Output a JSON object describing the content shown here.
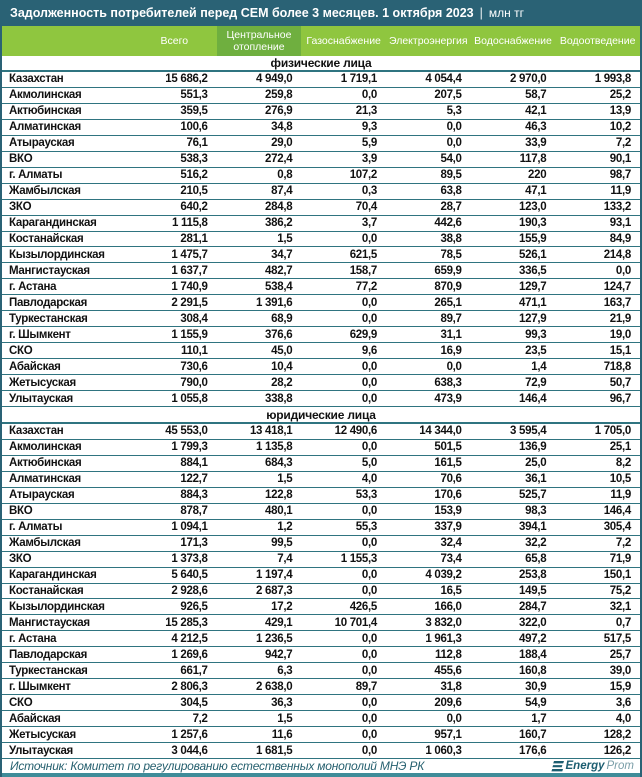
{
  "chart_data": {
    "type": "table",
    "title": "Задолженность потребителей перед СЕМ более 3 месяцев. 1 октября 2023",
    "unit": "млн тг",
    "columns": [
      "Всего",
      "Центральное отопление",
      "Газоснабжение",
      "Электроэнергия",
      "Водоснабжение",
      "Водоотведение"
    ],
    "highlighted_column": "Центральное отопление",
    "sections": [
      {
        "label": "физические лица",
        "rows": [
          {
            "name": "Казахстан",
            "bold": true,
            "values": [
              "15 686,2",
              "4 949,0",
              "1 719,1",
              "4 054,4",
              "2 970,0",
              "1 993,8"
            ]
          },
          {
            "name": "Акмолинская",
            "values": [
              "551,3",
              "259,8",
              "0,0",
              "207,5",
              "58,7",
              "25,2"
            ]
          },
          {
            "name": "Актюбинская",
            "values": [
              "359,5",
              "276,9",
              "21,3",
              "5,3",
              "42,1",
              "13,9"
            ]
          },
          {
            "name": "Алматинская",
            "values": [
              "100,6",
              "34,8",
              "9,3",
              "0,0",
              "46,3",
              "10,2"
            ]
          },
          {
            "name": "Атырауская",
            "values": [
              "76,1",
              "29,0",
              "5,9",
              "0,0",
              "33,9",
              "7,2"
            ]
          },
          {
            "name": "ВКО",
            "values": [
              "538,3",
              "272,4",
              "3,9",
              "54,0",
              "117,8",
              "90,1"
            ]
          },
          {
            "name": "г. Алматы",
            "values": [
              "516,2",
              "0,8",
              "107,2",
              "89,5",
              "220",
              "98,7"
            ]
          },
          {
            "name": "Жамбылская",
            "values": [
              "210,5",
              "87,4",
              "0,3",
              "63,8",
              "47,1",
              "11,9"
            ]
          },
          {
            "name": "ЗКО",
            "values": [
              "640,2",
              "284,8",
              "70,4",
              "28,7",
              "123,0",
              "133,2"
            ]
          },
          {
            "name": "Карагандинская",
            "values": [
              "1 115,8",
              "386,2",
              "3,7",
              "442,6",
              "190,3",
              "93,1"
            ]
          },
          {
            "name": "Костанайская",
            "values": [
              "281,1",
              "1,5",
              "0,0",
              "38,8",
              "155,9",
              "84,9"
            ]
          },
          {
            "name": "Кызылординская",
            "values": [
              "1 475,7",
              "34,7",
              "621,5",
              "78,5",
              "526,1",
              "214,8"
            ]
          },
          {
            "name": "Мангистауская",
            "values": [
              "1 637,7",
              "482,7",
              "158,7",
              "659,9",
              "336,5",
              "0,0"
            ]
          },
          {
            "name": "г. Астана",
            "values": [
              "1 740,9",
              "538,4",
              "77,2",
              "870,9",
              "129,7",
              "124,7"
            ]
          },
          {
            "name": "Павлодарская",
            "values": [
              "2 291,5",
              "1 391,6",
              "0,0",
              "265,1",
              "471,1",
              "163,7"
            ]
          },
          {
            "name": "Туркестанская",
            "values": [
              "308,4",
              "68,9",
              "0,0",
              "89,7",
              "127,9",
              "21,9"
            ]
          },
          {
            "name": "г. Шымкент",
            "values": [
              "1 155,9",
              "376,6",
              "629,9",
              "31,1",
              "99,3",
              "19,0"
            ]
          },
          {
            "name": "СКО",
            "values": [
              "110,1",
              "45,0",
              "9,6",
              "16,9",
              "23,5",
              "15,1"
            ]
          },
          {
            "name": "Абайская",
            "values": [
              "730,6",
              "10,4",
              "0,0",
              "0,0",
              "1,4",
              "718,8"
            ]
          },
          {
            "name": "Жетысуская",
            "values": [
              "790,0",
              "28,2",
              "0,0",
              "638,3",
              "72,9",
              "50,7"
            ]
          },
          {
            "name": "Улытауская",
            "values": [
              "1 055,8",
              "338,8",
              "0,0",
              "473,9",
              "146,4",
              "96,7"
            ]
          }
        ]
      },
      {
        "label": "юридические лица",
        "rows": [
          {
            "name": "Казахстан",
            "bold": true,
            "values": [
              "45 553,0",
              "13 418,1",
              "12 490,6",
              "14 344,0",
              "3 595,4",
              "1 705,0"
            ]
          },
          {
            "name": "Акмолинская",
            "values": [
              "1 799,3",
              "1 135,8",
              "0,0",
              "501,5",
              "136,9",
              "25,1"
            ]
          },
          {
            "name": "Актюбинская",
            "values": [
              "884,1",
              "684,3",
              "5,0",
              "161,5",
              "25,0",
              "8,2"
            ]
          },
          {
            "name": "Алматинская",
            "values": [
              "122,7",
              "1,5",
              "4,0",
              "70,6",
              "36,1",
              "10,5"
            ]
          },
          {
            "name": "Атырауская",
            "values": [
              "884,3",
              "122,8",
              "53,3",
              "170,6",
              "525,7",
              "11,9"
            ]
          },
          {
            "name": "ВКО",
            "values": [
              "878,7",
              "480,1",
              "0,0",
              "153,9",
              "98,3",
              "146,4"
            ]
          },
          {
            "name": "г. Алматы",
            "values": [
              "1 094,1",
              "1,2",
              "55,3",
              "337,9",
              "394,1",
              "305,4"
            ]
          },
          {
            "name": "Жамбылская",
            "values": [
              "171,3",
              "99,5",
              "0,0",
              "32,4",
              "32,2",
              "7,2"
            ]
          },
          {
            "name": "ЗКО",
            "values": [
              "1 373,8",
              "7,4",
              "1 155,3",
              "73,4",
              "65,8",
              "71,9"
            ]
          },
          {
            "name": "Карагандинская",
            "values": [
              "5 640,5",
              "1 197,4",
              "0,0",
              "4 039,2",
              "253,8",
              "150,1"
            ]
          },
          {
            "name": "Костанайская",
            "values": [
              "2 928,6",
              "2 687,3",
              "0,0",
              "16,5",
              "149,5",
              "75,2"
            ]
          },
          {
            "name": "Кызылординская",
            "values": [
              "926,5",
              "17,2",
              "426,5",
              "166,0",
              "284,7",
              "32,1"
            ]
          },
          {
            "name": "Мангистауская",
            "values": [
              "15 285,3",
              "429,1",
              "10 701,4",
              "3 832,0",
              "322,0",
              "0,7"
            ]
          },
          {
            "name": "г. Астана",
            "values": [
              "4 212,5",
              "1 236,5",
              "0,0",
              "1 961,3",
              "497,2",
              "517,5"
            ]
          },
          {
            "name": "Павлодарская",
            "values": [
              "1 269,6",
              "942,7",
              "0,0",
              "112,8",
              "188,4",
              "25,7"
            ]
          },
          {
            "name": "Туркестанская",
            "values": [
              "661,7",
              "6,3",
              "0,0",
              "455,6",
              "160,8",
              "39,0"
            ]
          },
          {
            "name": "г. Шымкент",
            "values": [
              "2 806,3",
              "2 638,0",
              "89,7",
              "31,8",
              "30,9",
              "15,9"
            ]
          },
          {
            "name": "СКО",
            "values": [
              "304,5",
              "36,3",
              "0,0",
              "209,6",
              "54,9",
              "3,6"
            ]
          },
          {
            "name": "Абайская",
            "values": [
              "7,2",
              "1,5",
              "0,0",
              "0,0",
              "1,7",
              "4,0"
            ]
          },
          {
            "name": "Жетысуская",
            "values": [
              "1 257,6",
              "11,6",
              "0,0",
              "957,1",
              "160,7",
              "128,2"
            ]
          },
          {
            "name": "Улытауская",
            "values": [
              "3 044,6",
              "1 681,5",
              "0,0",
              "1 060,3",
              "176,6",
              "126,2"
            ]
          }
        ]
      }
    ]
  },
  "title_separator": "|",
  "footer": {
    "source": "Источник: Комитет по регулированию естественных монополий МНЭ РК",
    "logo_energy": "Energy",
    "logo_prom": "Prom"
  },
  "colors": {
    "title_bar": "#2A6275",
    "header_green": "#8FC63F",
    "highlight_green": "#6FAF3F",
    "line": "#2F7480",
    "source_text": "#26606F",
    "logo_dark": "#1C5D70",
    "logo_light": "#7A9EA8",
    "bottom_bar": "#3F8C99"
  }
}
